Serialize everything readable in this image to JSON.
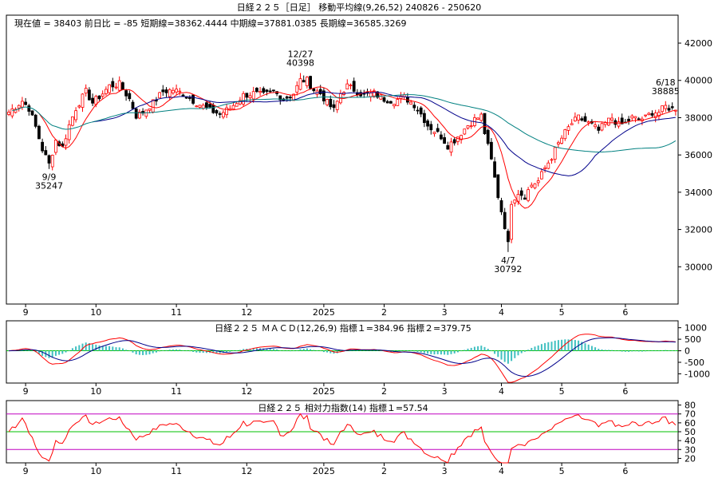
{
  "header": {
    "title": "日経２２５［日足］ 移動平均線(9,26,52)  240826 - 250620",
    "info": "現在値 = 38403  前日比 = -85   短期線=38362.4444   中期線=37881.0385   長期線=36585.3269"
  },
  "chart_data": [
    {
      "type": "candlestick",
      "title": "日経２２５［日足］ 移動平均線(9,26,52)  240826 - 250620",
      "date_range": "240826 - 250620",
      "x_month_labels": [
        "9",
        "10",
        "11",
        "12",
        "2025",
        "2",
        "3",
        "4",
        "5",
        "6"
      ],
      "month_start_index": [
        5,
        26,
        50,
        71,
        94,
        112,
        130,
        147,
        165,
        184
      ],
      "num_days": 200,
      "ylim": [
        28000,
        43500
      ],
      "yticks": [
        30000,
        32000,
        34000,
        36000,
        38000,
        40000,
        42000
      ],
      "ma_periods": [
        9,
        26,
        52
      ],
      "current": 38403,
      "change": -85,
      "ma_values": {
        "short": 38362.4444,
        "mid": 37881.0385,
        "long": 36585.3269
      },
      "annotations": [
        {
          "date_index": 12,
          "lines": [
            "9/9",
            "35247"
          ],
          "value": 35247,
          "position": "below"
        },
        {
          "date_index": 87,
          "lines": [
            "12/27",
            "40398"
          ],
          "value": 40398,
          "position": "above"
        },
        {
          "date_index": 149,
          "lines": [
            "4/7",
            "30792"
          ],
          "value": 30792,
          "position": "below"
        },
        {
          "date_index": 196,
          "lines": [
            "6/18",
            "38885"
          ],
          "value": 38885,
          "position": "above"
        }
      ],
      "anchors": [
        [
          0,
          38300
        ],
        [
          2,
          38600
        ],
        [
          4,
          38900
        ],
        [
          6,
          38500
        ],
        [
          8,
          37500
        ],
        [
          10,
          36300
        ],
        [
          12,
          35500
        ],
        [
          14,
          36800
        ],
        [
          16,
          36400
        ],
        [
          18,
          37600
        ],
        [
          20,
          38500
        ],
        [
          23,
          39400
        ],
        [
          25,
          38800
        ],
        [
          28,
          39300
        ],
        [
          30,
          39700
        ],
        [
          33,
          39800
        ],
        [
          36,
          39000
        ],
        [
          38,
          38100
        ],
        [
          40,
          38300
        ],
        [
          43,
          38800
        ],
        [
          46,
          39400
        ],
        [
          49,
          39500
        ],
        [
          52,
          39300
        ],
        [
          56,
          38800
        ],
        [
          60,
          38400
        ],
        [
          63,
          38200
        ],
        [
          66,
          38500
        ],
        [
          70,
          39200
        ],
        [
          73,
          39300
        ],
        [
          76,
          39200
        ],
        [
          79,
          39400
        ],
        [
          82,
          39000
        ],
        [
          85,
          39300
        ],
        [
          87,
          40000
        ],
        [
          89,
          40000
        ],
        [
          91,
          39500
        ],
        [
          93,
          39300
        ],
        [
          95,
          38800
        ],
        [
          97,
          38400
        ],
        [
          99,
          39300
        ],
        [
          101,
          39700
        ],
        [
          103,
          39500
        ],
        [
          106,
          39200
        ],
        [
          109,
          39300
        ],
        [
          112,
          39000
        ],
        [
          115,
          38900
        ],
        [
          118,
          39100
        ],
        [
          121,
          38700
        ],
        [
          123,
          38200
        ],
        [
          125,
          37600
        ],
        [
          127,
          37300
        ],
        [
          129,
          37000
        ],
        [
          131,
          36500
        ],
        [
          133,
          36800
        ],
        [
          135,
          37200
        ],
        [
          137,
          37600
        ],
        [
          139,
          37900
        ],
        [
          141,
          38100
        ],
        [
          142,
          37200
        ],
        [
          144,
          35700
        ],
        [
          146,
          33800
        ],
        [
          148,
          32200
        ],
        [
          149,
          31200
        ],
        [
          150,
          33500
        ],
        [
          152,
          34000
        ],
        [
          154,
          33800
        ],
        [
          156,
          34400
        ],
        [
          158,
          34600
        ],
        [
          160,
          35300
        ],
        [
          162,
          35900
        ],
        [
          164,
          36600
        ],
        [
          166,
          37200
        ],
        [
          168,
          37700
        ],
        [
          170,
          38000
        ],
        [
          172,
          37800
        ],
        [
          174,
          37600
        ],
        [
          176,
          37300
        ],
        [
          178,
          37700
        ],
        [
          180,
          38000
        ],
        [
          182,
          37600
        ],
        [
          184,
          37700
        ],
        [
          186,
          38000
        ],
        [
          188,
          37900
        ],
        [
          190,
          38000
        ],
        [
          192,
          38300
        ],
        [
          194,
          38300
        ],
        [
          196,
          38600
        ],
        [
          199,
          38400
        ]
      ]
    },
    {
      "type": "line",
      "title": "日経２２５     ＭＡＣＤ(12,26,9)  指標１=384.96   指標２=379.75",
      "indicator": "MACD(12,26,9)",
      "indicator1": 384.96,
      "indicator2": 379.75,
      "ylim": [
        -1400,
        1300
      ],
      "ytick_labels": [
        {
          "value": 1000,
          "label": "1000"
        },
        {
          "value": 500,
          "label": "500"
        },
        {
          "value": 0,
          "label": "0"
        },
        {
          "value": -500,
          "label": "-500"
        },
        {
          "value": -1000,
          "label": "-1000"
        }
      ],
      "grid": false
    },
    {
      "type": "line",
      "title": "日経２２５       相対力指数(14) 指標１=57.54",
      "indicator": "RSI(14)",
      "indicator1": 57.54,
      "ylim": [
        15,
        85
      ],
      "ytick_labels": [
        {
          "value": 80,
          "label": "80"
        },
        {
          "value": 70,
          "label": "70"
        },
        {
          "value": 60,
          "label": "60"
        },
        {
          "value": 50,
          "label": "50"
        },
        {
          "value": 40,
          "label": "40"
        },
        {
          "value": 30,
          "label": "30"
        },
        {
          "value": 20,
          "label": "20"
        }
      ],
      "ref_lines": [
        {
          "value": 70,
          "color": "#c000c0"
        },
        {
          "value": 50,
          "color": "#00c000"
        },
        {
          "value": 30,
          "color": "#c000c0"
        }
      ]
    }
  ],
  "colors": {
    "up": "#ff0000",
    "down": "#000000",
    "ma_short": "#ff0000",
    "ma_mid": "#00008b",
    "ma_long": "#008080",
    "macd1": "#ff0000",
    "macd2": "#00008b",
    "hist": "#40c0c0",
    "zero": "#00c000",
    "rsi": "#ff0000"
  }
}
